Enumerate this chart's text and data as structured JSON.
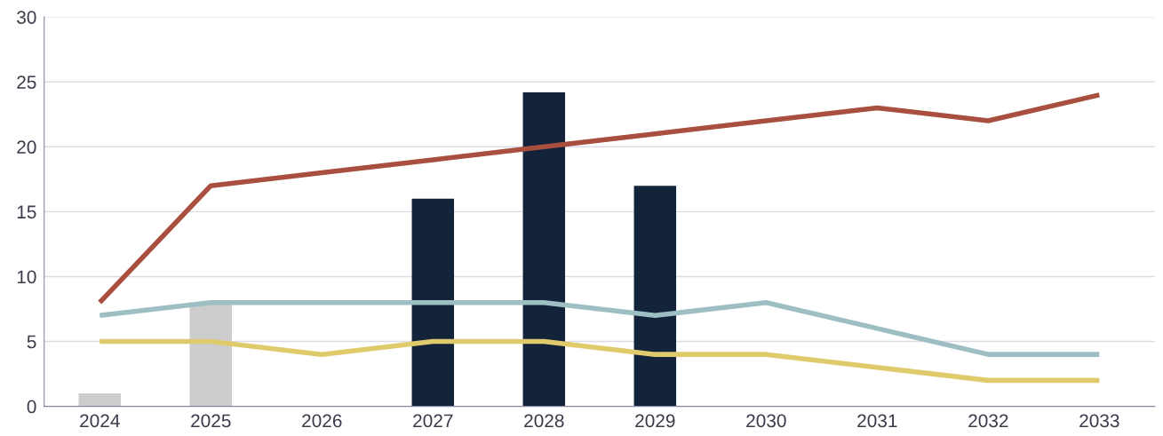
{
  "chart_data": {
    "type": "bar",
    "categories": [
      "2024",
      "2025",
      "2026",
      "2027",
      "2028",
      "2029",
      "2030",
      "2031",
      "2032",
      "2033"
    ],
    "series": [
      {
        "colors": [
          "#cccccc",
          "#cccccc",
          null,
          "#13233a",
          "#13233a",
          "#13233a",
          null,
          null,
          null,
          null
        ],
        "values": [
          1,
          8,
          null,
          16,
          24.2,
          17,
          null,
          null,
          null,
          null
        ]
      },
      {
        "type": "line",
        "color": "#a94f3f",
        "values": [
          8,
          17,
          18,
          19,
          20,
          21,
          22,
          23,
          22,
          24
        ]
      },
      {
        "type": "line",
        "color": "#9dbfc4",
        "values": [
          7,
          8,
          8,
          8,
          8,
          7,
          8,
          6,
          4,
          4
        ]
      },
      {
        "type": "line",
        "color": "#e0cb6c",
        "values": [
          5,
          5,
          4,
          5,
          5,
          4,
          4,
          3,
          2,
          2
        ]
      }
    ],
    "ylim": [
      0,
      30
    ],
    "yticks": [
      0,
      5,
      10,
      15,
      20,
      25,
      30
    ],
    "grid": "y"
  }
}
